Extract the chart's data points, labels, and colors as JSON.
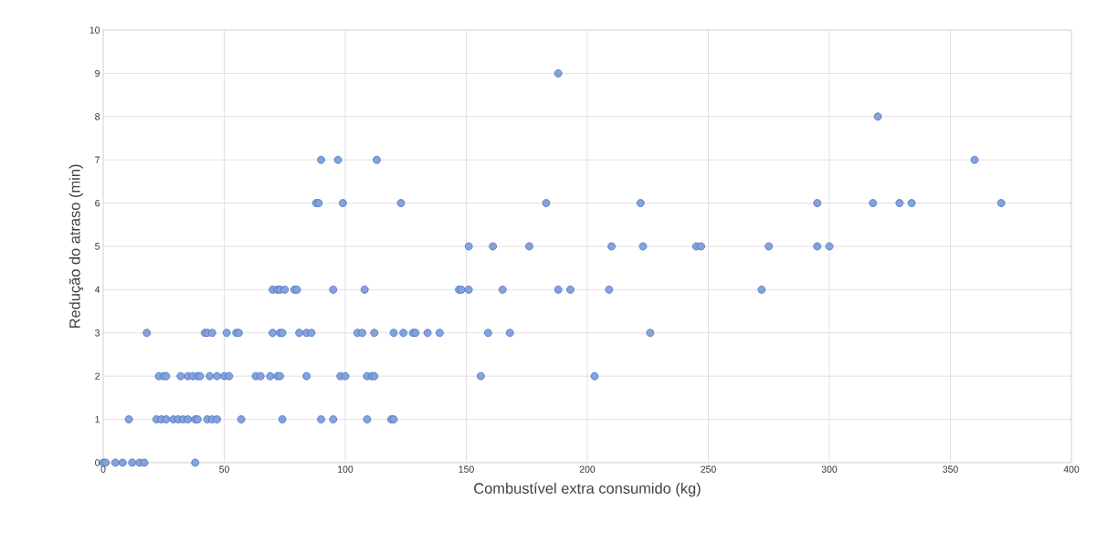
{
  "chart_data": {
    "type": "scatter",
    "xlabel": "Combustível extra consumido (kg)",
    "ylabel": "Redução do atraso (min)",
    "x": [
      0,
      1,
      5,
      8,
      12,
      15,
      17,
      38,
      10.6,
      22,
      24,
      26,
      29,
      31,
      33,
      35,
      38,
      39,
      43,
      45,
      47,
      57,
      74,
      90,
      95,
      109,
      119,
      120,
      23,
      25,
      26,
      32,
      35,
      37,
      39,
      40,
      44,
      47,
      50,
      52,
      63,
      65,
      69,
      72,
      73,
      84,
      98,
      100,
      109,
      111,
      112,
      156,
      203,
      18,
      42,
      43,
      45,
      51,
      55,
      56,
      70,
      73,
      74,
      81,
      84,
      86,
      105,
      107,
      112,
      120,
      124,
      128,
      129,
      134,
      139,
      159,
      168,
      226,
      70,
      72,
      73,
      75,
      79,
      80,
      95,
      108,
      147,
      148,
      151,
      165,
      188,
      193,
      209,
      272,
      151,
      161,
      176,
      210,
      223,
      245,
      247,
      275,
      295,
      300,
      88,
      89,
      99,
      123,
      183,
      222,
      295,
      318,
      329,
      334,
      371,
      90,
      97,
      113,
      360,
      320,
      188
    ],
    "values": [
      0,
      0,
      0,
      0,
      0,
      0,
      0,
      0,
      1,
      1,
      1,
      1,
      1,
      1,
      1,
      1,
      1,
      1,
      1,
      1,
      1,
      1,
      1,
      1,
      1,
      1,
      1,
      1,
      2,
      2,
      2,
      2,
      2,
      2,
      2,
      2,
      2,
      2,
      2,
      2,
      2,
      2,
      2,
      2,
      2,
      2,
      2,
      2,
      2,
      2,
      2,
      2,
      2,
      3,
      3,
      3,
      3,
      3,
      3,
      3,
      3,
      3,
      3,
      3,
      3,
      3,
      3,
      3,
      3,
      3,
      3,
      3,
      3,
      3,
      3,
      3,
      3,
      3,
      4,
      4,
      4,
      4,
      4,
      4,
      4,
      4,
      4,
      4,
      4,
      4,
      4,
      4,
      4,
      4,
      5,
      5,
      5,
      5,
      5,
      5,
      5,
      5,
      5,
      5,
      6,
      6,
      6,
      6,
      6,
      6,
      6,
      6,
      6,
      6,
      6,
      7,
      7,
      7,
      7,
      8,
      9
    ],
    "color": "#4472c4",
    "marker": "circle",
    "grid": true,
    "xlim": [
      0,
      400
    ],
    "ylim": [
      0,
      10
    ],
    "xticks": [
      0,
      50,
      100,
      150,
      200,
      250,
      300,
      350,
      400
    ],
    "yticks": [
      0,
      1,
      2,
      3,
      4,
      5,
      6,
      7,
      8,
      9,
      10
    ]
  }
}
